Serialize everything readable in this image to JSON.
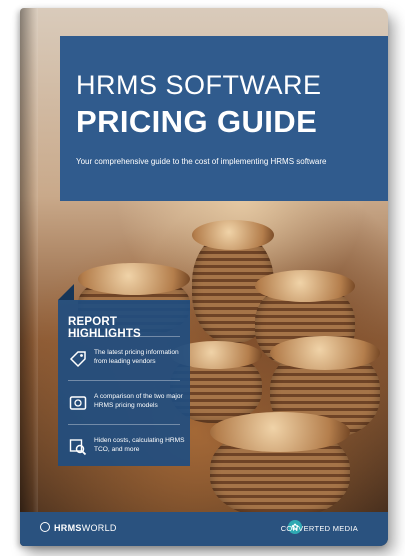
{
  "cover": {
    "title_line1": "HRMS SOFTWARE",
    "title_line2": "PRICING GUIDE",
    "subtitle": "Your comprehensive guide to the cost of implementing HRMS software"
  },
  "highlights": {
    "title": "REPORT HIGHLIGHTS",
    "items": [
      {
        "icon": "price-tag-icon",
        "text": "The latest pricing information from leading vendors"
      },
      {
        "icon": "money-compare-icon",
        "text": "A comparison of the two major HRMS pricing models"
      },
      {
        "icon": "magnify-money-icon",
        "text": "Hiden costs, calculating HRMS TCO, and more"
      }
    ]
  },
  "footer": {
    "left_brand_bold": "HRMS",
    "left_brand_rest": "WORLD",
    "right_brand": "CONVERTED MEDIA"
  },
  "colors": {
    "primary_blue": "#305b8d",
    "dark_blue": "#1d3d62",
    "teal_accent": "#2fa9b3"
  }
}
